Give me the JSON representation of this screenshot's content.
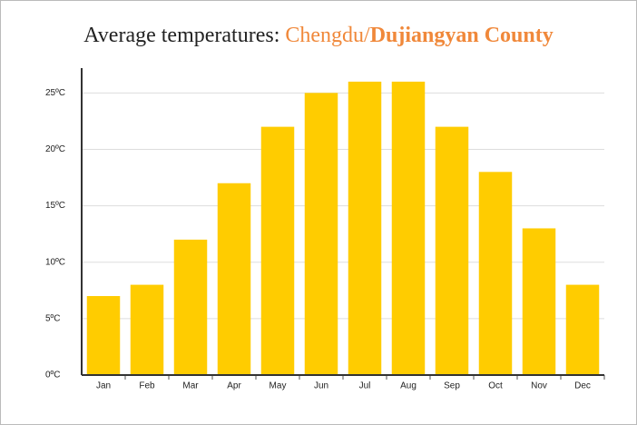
{
  "chart_data": {
    "type": "bar",
    "title": [
      "Average temperatures: ",
      "Chengdu/",
      "Dujiangyan County"
    ],
    "categories": [
      "Jan",
      "Feb",
      "Mar",
      "Apr",
      "May",
      "Jun",
      "Jul",
      "Aug",
      "Sep",
      "Oct",
      "Nov",
      "Dec"
    ],
    "values": [
      7,
      8,
      12,
      17,
      22,
      25,
      26,
      26,
      22,
      18,
      13,
      8
    ],
    "color": "#ffcc00",
    "ylim": [
      0,
      27.2
    ],
    "yticks": [
      {
        "value": 0,
        "label": "0ºC"
      },
      {
        "value": 5,
        "label": "5ºC"
      },
      {
        "value": 10,
        "label": "10ºC"
      },
      {
        "value": 15,
        "label": "15ºC"
      },
      {
        "value": 20,
        "label": "20ºC"
      },
      {
        "value": 25,
        "label": "25ºC"
      }
    ],
    "grid": true
  }
}
